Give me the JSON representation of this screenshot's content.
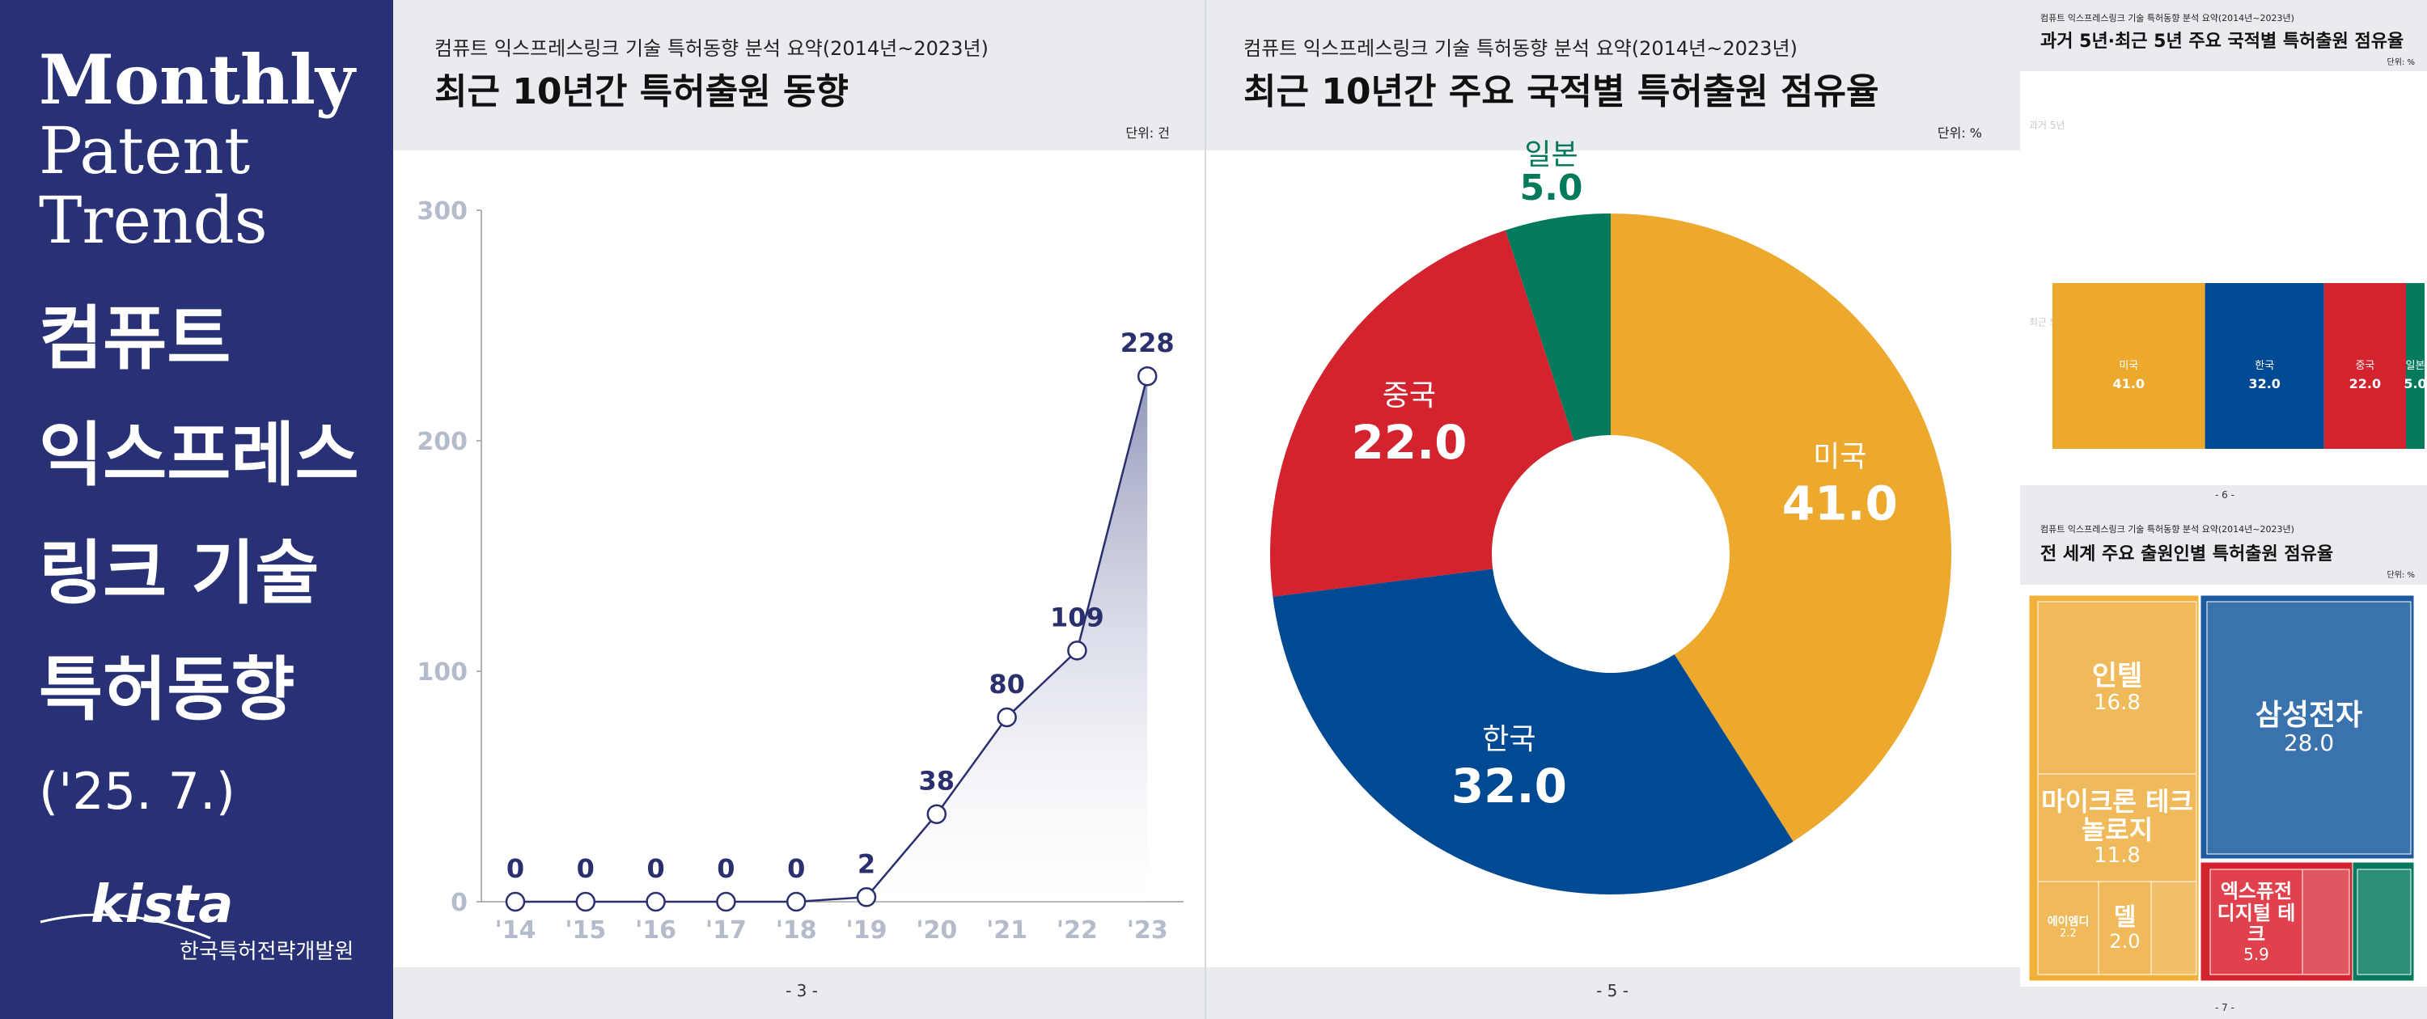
{
  "cover": {
    "title_en": [
      "Monthly",
      "Patent",
      "Trends"
    ],
    "title_ko": [
      "컴퓨트",
      "익스프레스",
      "링크 기술",
      "특허동향"
    ],
    "date": "('25. 7.)",
    "logo": "kista",
    "org": "한국특허전략개발원"
  },
  "chart_data": [
    {
      "type": "line",
      "subtitle": "컴퓨트 익스프레스링크 기술 특허동향 분석 요약(2014년~2023년)",
      "title": "최근 10년간 특허출원 동향",
      "unit": "단위: 건",
      "page_number": "- 3 -",
      "categories": [
        "'14",
        "'15",
        "'16",
        "'17",
        "'18",
        "'19",
        "'20",
        "'21",
        "'22",
        "'23"
      ],
      "values": [
        0,
        0,
        0,
        0,
        0,
        2,
        38,
        80,
        109,
        228
      ],
      "color": "#2a2f6e",
      "ylim": [
        0,
        300
      ],
      "yticks": [
        0,
        100,
        200,
        300
      ]
    },
    {
      "type": "pie",
      "subtitle": "컴퓨트 익스프레스링크 기술 특허동향 분석 요약(2014년~2023년)",
      "title": "최근 10년간 주요 국적별 특허출원 점유율",
      "unit": "단위: %",
      "page_number": "- 5 -",
      "categories": [
        "미국",
        "한국",
        "중국",
        "일본"
      ],
      "values": [
        41,
        32,
        22,
        5
      ],
      "value_labels": [
        "41.0",
        "32.0",
        "22.0",
        "5.0"
      ],
      "colors": [
        "#eca92d",
        "#004a93",
        "#d2232f",
        "#047a5c"
      ]
    },
    {
      "type": "stacked-hbar",
      "subtitle": "컴퓨트 익스프레스링크 기술 특허동향 분석 요약(2014년~2023년)",
      "title": "과거 5년·최근 5년 주요 국적별 특허출원 점유율",
      "unit": "단위: %",
      "page_number": "- 6 -",
      "categories": [
        "과거 5년",
        "최근 5년"
      ],
      "xlim": [
        0,
        100
      ],
      "series": [
        {
          "name": "미국",
          "color": "#eca92d",
          "values": [
            null,
            41
          ],
          "value_labels": [
            null,
            "41.0"
          ]
        },
        {
          "name": "한국",
          "color": "#004a93",
          "values": [
            null,
            32
          ],
          "value_labels": [
            null,
            "32.0"
          ]
        },
        {
          "name": "중국",
          "color": "#d2232f",
          "values": [
            null,
            22
          ],
          "value_labels": [
            null,
            "22.0"
          ]
        },
        {
          "name": "일본",
          "color": "#047a5c",
          "values": [
            null,
            5
          ],
          "value_labels": [
            null,
            "5.0"
          ]
        }
      ]
    },
    {
      "type": "treemap",
      "subtitle": "컴퓨트 익스프레스링크 기술 특허동향 분석 요약(2014년~2023년)",
      "title": "전 세계 주요 출원인별 특허출원 점유율",
      "unit": "단위: %",
      "page_number": "- 7 -",
      "categories": [
        "인텔",
        "삼성전자",
        "마이크론 테크놀로지",
        "엑스퓨전 디지털 테크",
        "에이엠디",
        "델"
      ],
      "values": [
        16.8,
        28.0,
        11.8,
        5.9,
        2.2,
        2.0
      ],
      "value_labels": [
        "16.8",
        "28.0",
        "11.8",
        "5.9",
        "2.2",
        "2.0"
      ],
      "colors": [
        "#f0b95a",
        "#3a72ad",
        "#f0b95a",
        "#e0414c",
        "#f0b95a",
        "#f0b95a"
      ]
    }
  ]
}
